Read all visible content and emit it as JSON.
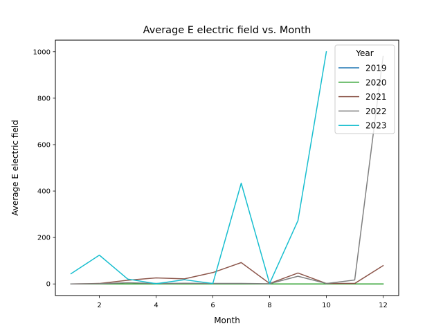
{
  "chart_data": {
    "type": "line",
    "title": "Average E electric field vs. Month",
    "xlabel": "Month",
    "ylabel": "Average E electric field",
    "xlim": [
      0.45,
      12.55
    ],
    "ylim": [
      -50,
      1050
    ],
    "xticks": [
      2,
      4,
      6,
      8,
      10,
      12
    ],
    "yticks": [
      0,
      200,
      400,
      600,
      800,
      1000
    ],
    "grid": false,
    "legend": {
      "title": "Year",
      "placement": "top-right"
    },
    "series": [
      {
        "name": "2019",
        "color": "#1f77b4",
        "x": [
          1,
          2,
          3,
          4,
          5,
          6,
          7,
          8,
          9,
          10,
          11,
          12
        ],
        "y": [
          0,
          0,
          0,
          0,
          0,
          0,
          0,
          0,
          0,
          0,
          0,
          0
        ]
      },
      {
        "name": "2020",
        "color": "#2ca02c",
        "x": [
          1,
          2,
          3,
          4,
          5,
          6,
          7,
          8,
          9,
          10,
          11,
          12
        ],
        "y": [
          0,
          0,
          0,
          0,
          0,
          0,
          0,
          0,
          0,
          0,
          0,
          0
        ]
      },
      {
        "name": "2021",
        "color": "#8c564b",
        "x": [
          1,
          2,
          3,
          4,
          5,
          6,
          7,
          8,
          9,
          10,
          11,
          12
        ],
        "y": [
          0,
          2,
          16,
          26,
          22,
          49,
          92,
          2,
          47,
          2,
          2,
          79
        ]
      },
      {
        "name": "2022",
        "color": "#7f7f7f",
        "x": [
          1,
          2,
          3,
          4,
          5,
          6,
          7,
          8,
          9,
          10,
          11,
          12
        ],
        "y": [
          0,
          1,
          5,
          2,
          3,
          2,
          2,
          1,
          33,
          2,
          17,
          980
        ]
      },
      {
        "name": "2023",
        "color": "#17becf",
        "x": [
          1,
          2,
          3,
          4,
          5,
          6,
          7,
          8,
          9,
          10
        ],
        "y": [
          44,
          124,
          21,
          1,
          18,
          2,
          434,
          2,
          273,
          1000
        ]
      }
    ]
  }
}
